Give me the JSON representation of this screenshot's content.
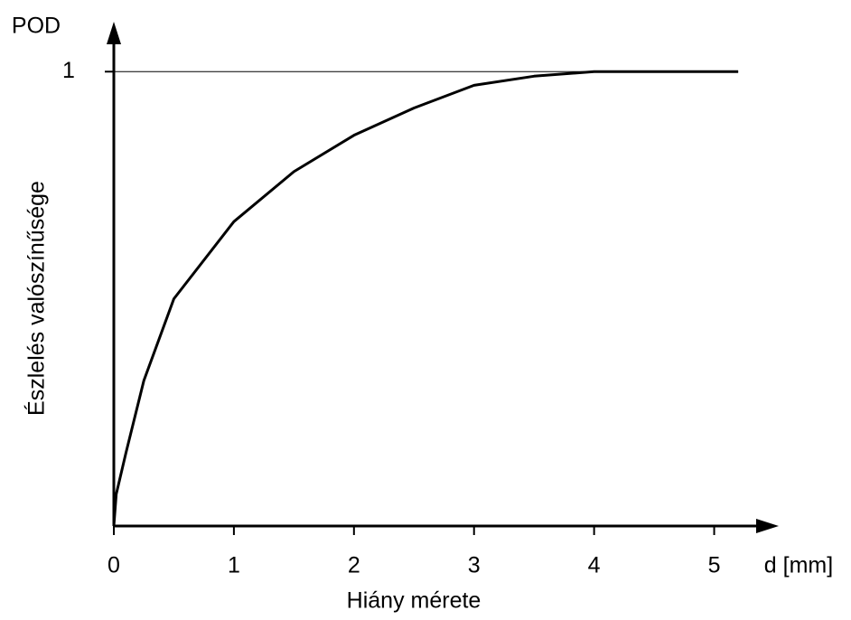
{
  "chart_data": {
    "type": "line",
    "y_axis_top_label": "POD",
    "x_axis_end_label": "d [mm]",
    "x_label": "Hiány mérete",
    "y_label": "Észlelés valószínűsége",
    "x": [
      0,
      0.02,
      0.1,
      0.25,
      0.5,
      1,
      1.5,
      2,
      2.5,
      3,
      3.5,
      4,
      4.1,
      5.2
    ],
    "values": [
      0,
      0.07,
      0.16,
      0.32,
      0.5,
      0.67,
      0.78,
      0.86,
      0.92,
      0.97,
      0.99,
      1.0,
      1,
      1
    ],
    "color": "#000000",
    "xlim": [
      0,
      5.5
    ],
    "ylim": [
      0,
      1.1
    ],
    "xticks": [
      0,
      1,
      2,
      3,
      4,
      5
    ],
    "yticks": [
      1
    ],
    "grid": true
  }
}
